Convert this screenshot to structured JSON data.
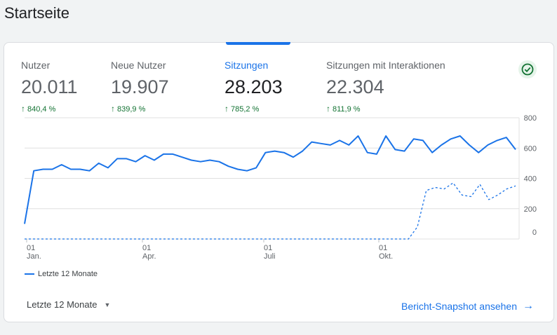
{
  "page": {
    "title": "Startseite"
  },
  "metrics": [
    {
      "label": "Nutzer",
      "value": "20.011",
      "delta": "840,4 %"
    },
    {
      "label": "Neue Nutzer",
      "value": "19.907",
      "delta": "839,9 %"
    },
    {
      "label": "Sitzungen",
      "value": "28.203",
      "delta": "785,2 %"
    },
    {
      "label": "Sitzungen mit Interaktionen",
      "value": "22.304",
      "delta": "811,9 %"
    }
  ],
  "chart_data": {
    "type": "line",
    "y_ticks": [
      "800",
      "600",
      "400",
      "200",
      "0"
    ],
    "x_ticks": [
      {
        "day": "01",
        "month": "Jan."
      },
      {
        "day": "01",
        "month": "Apr."
      },
      {
        "day": "01",
        "month": "Juli"
      },
      {
        "day": "01",
        "month": "Okt."
      }
    ],
    "ylim": [
      0,
      800
    ],
    "series": [
      {
        "name": "Letzte 12 Monate",
        "style": "solid",
        "values": [
          100,
          450,
          460,
          460,
          490,
          460,
          460,
          450,
          500,
          470,
          530,
          530,
          510,
          550,
          520,
          560,
          560,
          540,
          520,
          510,
          520,
          510,
          480,
          460,
          450,
          470,
          570,
          580,
          570,
          540,
          580,
          640,
          630,
          620,
          650,
          620,
          680,
          570,
          560,
          680,
          590,
          580,
          660,
          650,
          570,
          620,
          660,
          680,
          620,
          570,
          620,
          650,
          670,
          590
        ]
      },
      {
        "name": "",
        "style": "dashed",
        "values": [
          0,
          0,
          0,
          0,
          0,
          0,
          0,
          0,
          0,
          0,
          0,
          0,
          0,
          0,
          0,
          0,
          0,
          0,
          0,
          0,
          0,
          0,
          0,
          0,
          0,
          0,
          0,
          0,
          0,
          0,
          0,
          0,
          0,
          0,
          0,
          0,
          0,
          0,
          0,
          0,
          0,
          0,
          0,
          0,
          80,
          320,
          340,
          330,
          370,
          290,
          280,
          360,
          260,
          290,
          330,
          350
        ]
      }
    ]
  },
  "legend": {
    "label": "Letzte 12 Monate"
  },
  "footer": {
    "period": "Letzte 12 Monate",
    "report_link": "Bericht-Snapshot ansehen"
  },
  "colors": {
    "accent": "#1a73e8",
    "positive": "#137333"
  },
  "icons": {
    "status": "check-circle-icon",
    "dropdown": "caret-down-icon",
    "link": "arrow-right-icon"
  }
}
